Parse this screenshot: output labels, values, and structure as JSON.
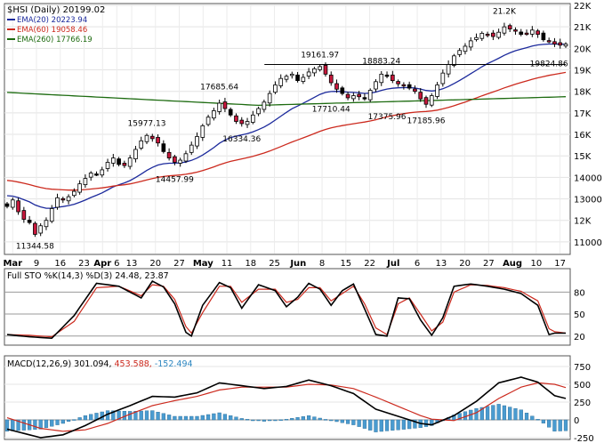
{
  "chart_data": [
    {
      "type": "candlestick",
      "title": "$HSI (Daily) 20199.02",
      "legend": [
        {
          "label": "EMA(20) 20223.94",
          "color": "#1c2a9c"
        },
        {
          "label": "EMA(60) 19058.46",
          "color": "#cc2a1e"
        },
        {
          "label": "EMA(260) 17766.19",
          "color": "#1d6b10"
        }
      ],
      "ylim": [
        10500,
        22000
      ],
      "yticks": [
        11000,
        12000,
        13000,
        14000,
        15000,
        16000,
        17000,
        18000,
        19000,
        20000,
        21000,
        22000
      ],
      "ytick_labels": [
        "11000",
        "12K",
        "13000",
        "14000",
        "15K",
        "16K",
        "17K",
        "18K",
        "19K",
        "20K",
        "21K",
        "22K"
      ],
      "x_labels": [
        "Mar",
        "9",
        "16",
        "23",
        "Apr",
        "6",
        "13",
        "20",
        "27",
        "May",
        "11",
        "18",
        "25",
        "Jun",
        "8",
        "15",
        "22",
        "Jul",
        "6",
        "13",
        "20",
        "27",
        "Aug",
        "10",
        "17"
      ],
      "x_label_weekindex": [
        0,
        1,
        2,
        3,
        4,
        4,
        5,
        6,
        7,
        8,
        9,
        10,
        11,
        12,
        13,
        14,
        15,
        16,
        17,
        18,
        19,
        20,
        21,
        22,
        23
      ],
      "x_label_bold": [
        "Mar",
        "Apr",
        "May",
        "Jun",
        "Jul",
        "Aug"
      ],
      "closes": [
        12650,
        12950,
        12400,
        12050,
        11900,
        11350,
        11750,
        12000,
        12550,
        13050,
        12950,
        13100,
        13350,
        13700,
        13950,
        14200,
        14150,
        14350,
        14700,
        14900,
        14600,
        14550,
        14900,
        15300,
        15700,
        15950,
        15800,
        15600,
        15200,
        14900,
        14700,
        14800,
        15100,
        15500,
        15900,
        16400,
        16800,
        17100,
        17450,
        17200,
        16900,
        16600,
        16500,
        16600,
        16900,
        17200,
        17500,
        17900,
        18300,
        18600,
        18700,
        18800,
        18500,
        18650,
        18900,
        19050,
        19150,
        18800,
        18400,
        18100,
        17900,
        17700,
        17800,
        17750,
        17650,
        18050,
        18450,
        18800,
        18700,
        18500,
        18350,
        18250,
        18150,
        18000,
        17650,
        17400,
        17800,
        18300,
        18850,
        19250,
        19650,
        19900,
        20100,
        20350,
        20500,
        20700,
        20650,
        20550,
        20750,
        21000,
        20900,
        20800,
        20650,
        20700,
        20850,
        20650,
        20400,
        20350,
        20200,
        20150,
        20200
      ],
      "hline": {
        "value": 19250,
        "from_index": 58,
        "to_index": 100
      },
      "annotations": [
        {
          "text": "11344.58",
          "index": 5,
          "value": 11344.58,
          "pos": "below"
        },
        {
          "text": "15977.13",
          "index": 25,
          "value": 15977.13,
          "pos": "above"
        },
        {
          "text": "14457.99",
          "index": 30,
          "value": 14457.99,
          "pos": "below"
        },
        {
          "text": "17685.64",
          "index": 38,
          "value": 17685.64,
          "pos": "above"
        },
        {
          "text": "16334.36",
          "index": 42,
          "value": 16334.36,
          "pos": "below"
        },
        {
          "text": "19161.97",
          "index": 56,
          "value": 19161.97,
          "pos": "above"
        },
        {
          "text": "17710.44",
          "index": 58,
          "value": 17710.44,
          "pos": "below"
        },
        {
          "text": "18883.24",
          "index": 67,
          "value": 18883.24,
          "pos": "above"
        },
        {
          "text": "17375.96",
          "index": 68,
          "value": 17375.96,
          "pos": "below"
        },
        {
          "text": "17185.96",
          "index": 75,
          "value": 17185.96,
          "pos": "below"
        },
        {
          "text": "21.2K",
          "index": 89,
          "value": 21200,
          "pos": "above"
        },
        {
          "text": "19824.86",
          "index": 97,
          "value": 19824.86,
          "pos": "below"
        }
      ]
    },
    {
      "type": "line",
      "title": "Full STO %K(14,3) %D(3) 24.48, 23.87",
      "ylim": [
        10,
        95
      ],
      "yticks": [
        20,
        50,
        80
      ],
      "ytick_labels": [
        "20",
        "50",
        "80"
      ],
      "reference_lines": [
        20,
        50,
        80
      ],
      "series": [
        {
          "name": "%K",
          "color": "#000000",
          "anchors": [
            [
              0,
              22
            ],
            [
              4,
              19
            ],
            [
              8,
              17
            ],
            [
              12,
              48
            ],
            [
              16,
              92
            ],
            [
              20,
              88
            ],
            [
              24,
              72
            ],
            [
              26,
              95
            ],
            [
              28,
              87
            ],
            [
              30,
              64
            ],
            [
              32,
              25
            ],
            [
              33,
              20
            ],
            [
              35,
              62
            ],
            [
              38,
              93
            ],
            [
              40,
              86
            ],
            [
              42,
              58
            ],
            [
              45,
              90
            ],
            [
              48,
              82
            ],
            [
              50,
              60
            ],
            [
              52,
              73
            ],
            [
              54,
              92
            ],
            [
              56,
              84
            ],
            [
              58,
              62
            ],
            [
              60,
              82
            ],
            [
              62,
              91
            ],
            [
              64,
              57
            ],
            [
              66,
              22
            ],
            [
              68,
              20
            ],
            [
              70,
              72
            ],
            [
              72,
              71
            ],
            [
              74,
              42
            ],
            [
              76,
              21
            ],
            [
              78,
              45
            ],
            [
              80,
              88
            ],
            [
              83,
              91
            ],
            [
              86,
              88
            ],
            [
              89,
              84
            ],
            [
              92,
              78
            ],
            [
              95,
              62
            ],
            [
              97,
              22
            ],
            [
              98,
              24
            ],
            [
              100,
              24
            ]
          ]
        },
        {
          "name": "%D",
          "color": "#cc2a1e",
          "anchors": [
            [
              0,
              22
            ],
            [
              4,
              21
            ],
            [
              8,
              19
            ],
            [
              12,
              40
            ],
            [
              16,
              86
            ],
            [
              20,
              88
            ],
            [
              24,
              75
            ],
            [
              26,
              90
            ],
            [
              28,
              88
            ],
            [
              30,
              70
            ],
            [
              32,
              33
            ],
            [
              33,
              24
            ],
            [
              35,
              52
            ],
            [
              38,
              88
            ],
            [
              40,
              88
            ],
            [
              42,
              66
            ],
            [
              45,
              84
            ],
            [
              48,
              84
            ],
            [
              50,
              66
            ],
            [
              52,
              70
            ],
            [
              54,
              86
            ],
            [
              56,
              86
            ],
            [
              58,
              68
            ],
            [
              60,
              78
            ],
            [
              62,
              88
            ],
            [
              64,
              64
            ],
            [
              66,
              31
            ],
            [
              68,
              22
            ],
            [
              70,
              64
            ],
            [
              72,
              72
            ],
            [
              74,
              50
            ],
            [
              76,
              27
            ],
            [
              78,
              39
            ],
            [
              80,
              80
            ],
            [
              83,
              90
            ],
            [
              86,
              89
            ],
            [
              89,
              86
            ],
            [
              92,
              81
            ],
            [
              95,
              68
            ],
            [
              97,
              30
            ],
            [
              98,
              26
            ],
            [
              100,
              24
            ]
          ]
        }
      ]
    },
    {
      "type": "line",
      "title": "MACD(12,26,9) 301.094, 453.588, -152.494",
      "ylim": [
        -250,
        800
      ],
      "yticks": [
        -250,
        0,
        250,
        500,
        750
      ],
      "ytick_labels": [
        "-250",
        "0",
        "250",
        "500",
        "750"
      ],
      "series": [
        {
          "name": "MACD",
          "color": "#000000",
          "anchors": [
            [
              0,
              -130
            ],
            [
              6,
              -250
            ],
            [
              10,
              -210
            ],
            [
              14,
              -80
            ],
            [
              18,
              80
            ],
            [
              22,
              200
            ],
            [
              26,
              330
            ],
            [
              30,
              320
            ],
            [
              34,
              380
            ],
            [
              38,
              520
            ],
            [
              42,
              480
            ],
            [
              46,
              440
            ],
            [
              50,
              470
            ],
            [
              54,
              560
            ],
            [
              58,
              480
            ],
            [
              62,
              370
            ],
            [
              66,
              150
            ],
            [
              70,
              50
            ],
            [
              74,
              -50
            ],
            [
              76,
              -70
            ],
            [
              80,
              60
            ],
            [
              84,
              260
            ],
            [
              88,
              520
            ],
            [
              92,
              600
            ],
            [
              95,
              530
            ],
            [
              98,
              340
            ],
            [
              100,
              301
            ]
          ]
        },
        {
          "name": "Signal",
          "color": "#cc2a1e",
          "anchors": [
            [
              0,
              30
            ],
            [
              6,
              -120
            ],
            [
              10,
              -160
            ],
            [
              14,
              -140
            ],
            [
              18,
              -50
            ],
            [
              22,
              80
            ],
            [
              26,
              200
            ],
            [
              30,
              270
            ],
            [
              34,
              330
            ],
            [
              38,
              420
            ],
            [
              42,
              460
            ],
            [
              46,
              460
            ],
            [
              50,
              460
            ],
            [
              54,
              500
            ],
            [
              58,
              490
            ],
            [
              62,
              440
            ],
            [
              66,
              320
            ],
            [
              70,
              190
            ],
            [
              74,
              60
            ],
            [
              76,
              10
            ],
            [
              80,
              -10
            ],
            [
              84,
              100
            ],
            [
              88,
              300
            ],
            [
              92,
              460
            ],
            [
              95,
              520
            ],
            [
              98,
              500
            ],
            [
              100,
              454
            ]
          ]
        },
        {
          "name": "Histogram",
          "color": "#4a9bd0",
          "type": "bar",
          "from": "MACD-Signal"
        }
      ]
    }
  ]
}
